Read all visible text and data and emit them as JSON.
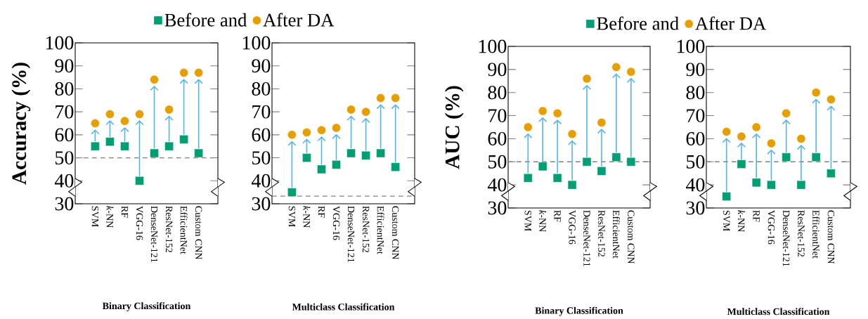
{
  "chart_data": [
    {
      "type": "scatter",
      "xlabel": "Binary Classification",
      "ylabel": "Accuracy (%)",
      "categories": [
        "SVM",
        "*k*-NN",
        "RF",
        "VGG-16",
        "DenseNet-121",
        "ResNet-152",
        "EfficientNet",
        "Custom CNN"
      ],
      "series": [
        {
          "name": "Before and",
          "color": "#009e73",
          "marker": "square",
          "values": [
            55,
            57,
            55,
            40,
            52,
            55,
            58,
            52
          ]
        },
        {
          "name": "After DA",
          "color": "#e69f00",
          "marker": "circle",
          "values": [
            65,
            69,
            66,
            69,
            84,
            71,
            87,
            87
          ]
        }
      ],
      "ylim": [
        30,
        100
      ],
      "yticks": [
        30,
        40,
        50,
        60,
        70,
        80,
        90,
        100
      ],
      "ref_lines": [
        {
          "axis": "y",
          "value": 50,
          "color": "#808080",
          "line_style": "dashed"
        }
      ],
      "legend": "top"
    },
    {
      "type": "scatter",
      "xlabel": "Multiclass Classification",
      "categories": [
        "SVM",
        "*k*-NN",
        "RF",
        "VGG-16",
        "DenseNet-121",
        "ResNet-152",
        "EfficientNet",
        "Custom CNN"
      ],
      "series": [
        {
          "color": "#009e73",
          "marker": "square",
          "values": [
            35,
            50,
            45,
            47,
            52,
            51,
            52,
            46
          ]
        },
        {
          "color": "#e69f00",
          "marker": "circle",
          "values": [
            60,
            61,
            62,
            63,
            71,
            70,
            76,
            76
          ]
        }
      ],
      "ylim": [
        30,
        100
      ],
      "yticks": [
        30,
        40,
        50,
        60,
        70,
        80,
        90,
        100
      ],
      "ref_lines": [
        {
          "axis": "y",
          "value": 33.3,
          "color": "#808080",
          "line_style": "dashed"
        }
      ]
    },
    {
      "type": "scatter",
      "xlabel": "Binary Classification",
      "ylabel": "AUC (%)",
      "categories": [
        "SVM",
        "*k*-NN",
        "RF",
        "VGG-16",
        "DenseNet-121",
        "ResNet-152",
        "EfficientNet",
        "Custom CNN"
      ],
      "series": [
        {
          "name": "Before and",
          "color": "#009e73",
          "marker": "square",
          "values": [
            43,
            48,
            43,
            40,
            50,
            46,
            52,
            50
          ]
        },
        {
          "name": "After DA",
          "color": "#e69f00",
          "marker": "circle",
          "values": [
            65,
            72,
            71,
            62,
            86,
            67,
            91,
            89
          ]
        }
      ],
      "ylim": [
        30,
        100
      ],
      "yticks": [
        30,
        40,
        50,
        60,
        70,
        80,
        90,
        100
      ],
      "ref_lines": [
        {
          "axis": "y",
          "value": 50,
          "color": "#808080",
          "line_style": "dashed"
        }
      ],
      "legend": "top"
    },
    {
      "type": "scatter",
      "xlabel": "Multiclass Classification",
      "categories": [
        "SVM",
        "*k*-NN",
        "RF",
        "VGG-16",
        "DenseNet-121",
        "ResNet-152",
        "EfficientNet",
        "Custom CNN"
      ],
      "series": [
        {
          "color": "#009e73",
          "marker": "square",
          "values": [
            35,
            49,
            41,
            40,
            52,
            40,
            52,
            45
          ]
        },
        {
          "color": "#e69f00",
          "marker": "circle",
          "values": [
            63,
            61,
            65,
            58,
            71,
            60,
            80,
            77
          ]
        }
      ],
      "ylim": [
        30,
        100
      ],
      "yticks": [
        30,
        40,
        50,
        60,
        70,
        80,
        90,
        100
      ],
      "ref_lines": [
        {
          "axis": "y",
          "value": 50,
          "color": "#808080",
          "line_style": "dashed"
        }
      ]
    }
  ]
}
